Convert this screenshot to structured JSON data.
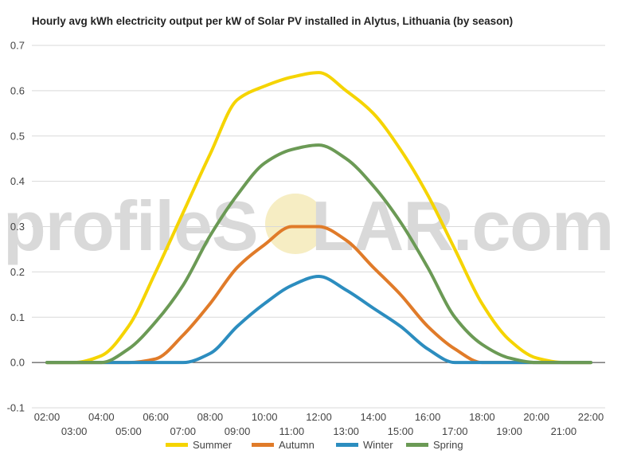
{
  "chart_data": {
    "type": "line",
    "title": "Hourly avg kWh electricity output per kW of Solar PV installed in Alytus, Lithuania (by season)",
    "xlabel": "",
    "ylabel": "",
    "ylim": [
      -0.1,
      0.7
    ],
    "yticks": [
      -0.1,
      0.0,
      0.1,
      0.2,
      0.3,
      0.4,
      0.5,
      0.6,
      0.7
    ],
    "y_tick_labels": [
      "-0.1",
      "0.0",
      "0.1",
      "0.2",
      "0.3",
      "0.4",
      "0.5",
      "0.6",
      "0.7"
    ],
    "x": [
      "02:00",
      "03:00",
      "04:00",
      "05:00",
      "06:00",
      "07:00",
      "08:00",
      "09:00",
      "10:00",
      "11:00",
      "12:00",
      "13:00",
      "14:00",
      "15:00",
      "16:00",
      "17:00",
      "18:00",
      "19:00",
      "20:00",
      "21:00",
      "22:00"
    ],
    "grid": true,
    "legend_position": "bottom",
    "series": [
      {
        "name": "Summer",
        "color": "#f5d400",
        "values": [
          0.0,
          0.0,
          0.015,
          0.08,
          0.2,
          0.33,
          0.46,
          0.58,
          0.61,
          0.63,
          0.64,
          0.6,
          0.55,
          0.47,
          0.37,
          0.25,
          0.13,
          0.05,
          0.01,
          0.0,
          0.0
        ]
      },
      {
        "name": "Autumn",
        "color": "#e07b29",
        "values": [
          0.0,
          0.0,
          0.0,
          0.0,
          0.008,
          0.06,
          0.13,
          0.21,
          0.26,
          0.3,
          0.3,
          0.27,
          0.21,
          0.15,
          0.08,
          0.03,
          0.0,
          0.0,
          0.0,
          0.0,
          0.0
        ]
      },
      {
        "name": "Winter",
        "color": "#2c8dbf",
        "values": [
          0.0,
          0.0,
          0.0,
          0.0,
          0.0,
          0.0,
          0.02,
          0.08,
          0.13,
          0.17,
          0.19,
          0.16,
          0.12,
          0.08,
          0.03,
          0.0,
          0.0,
          0.0,
          0.0,
          0.0,
          0.0
        ]
      },
      {
        "name": "Spring",
        "color": "#6b9a55",
        "values": [
          0.0,
          0.0,
          0.0,
          0.03,
          0.09,
          0.17,
          0.28,
          0.37,
          0.44,
          0.47,
          0.48,
          0.45,
          0.39,
          0.31,
          0.21,
          0.1,
          0.04,
          0.01,
          0.0,
          0.0,
          0.0
        ]
      }
    ]
  },
  "watermark": {
    "text_before": "profileS",
    "text_sun": "O",
    "text_after": "LAR.com",
    "sun_color": "#f6edc3"
  },
  "colors": {
    "grid": "#d9d9d9",
    "baseline": "#333333",
    "tick_text": "#444444"
  }
}
